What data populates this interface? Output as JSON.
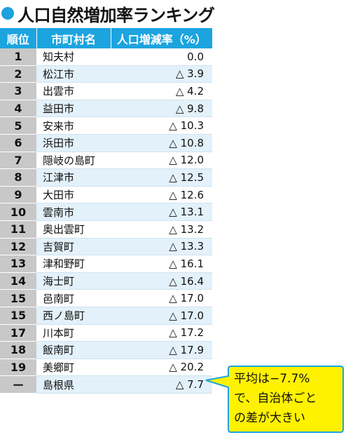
{
  "title": "人口自然増加率ランキング",
  "table": {
    "headers": [
      "順位",
      "市町村名",
      "人口増減率（%）"
    ],
    "rows": [
      {
        "rank": "1",
        "name": "知夫村",
        "value": "0.0"
      },
      {
        "rank": "2",
        "name": "松江市",
        "value": "△ 3.9"
      },
      {
        "rank": "3",
        "name": "出雲市",
        "value": "△ 4.2"
      },
      {
        "rank": "4",
        "name": "益田市",
        "value": "△ 9.8"
      },
      {
        "rank": "5",
        "name": "安来市",
        "value": "△ 10.3"
      },
      {
        "rank": "6",
        "name": "浜田市",
        "value": "△ 10.8"
      },
      {
        "rank": "7",
        "name": "隠岐の島町",
        "value": "△ 12.0"
      },
      {
        "rank": "8",
        "name": "江津市",
        "value": "△ 12.5"
      },
      {
        "rank": "9",
        "name": "大田市",
        "value": "△ 12.6"
      },
      {
        "rank": "10",
        "name": "雲南市",
        "value": "△ 13.1"
      },
      {
        "rank": "11",
        "name": "奥出雲町",
        "value": "△ 13.2"
      },
      {
        "rank": "12",
        "name": "吉賀町",
        "value": "△ 13.3"
      },
      {
        "rank": "13",
        "name": "津和野町",
        "value": "△ 16.1"
      },
      {
        "rank": "14",
        "name": "海士町",
        "value": "△ 16.4"
      },
      {
        "rank": "15",
        "name": "邑南町",
        "value": "△ 17.0"
      },
      {
        "rank": "15",
        "name": "西ノ島町",
        "value": "△ 17.0"
      },
      {
        "rank": "17",
        "name": "川本町",
        "value": "△ 17.2"
      },
      {
        "rank": "18",
        "name": "飯南町",
        "value": "△ 17.9"
      },
      {
        "rank": "19",
        "name": "美郷町",
        "value": "△ 20.2"
      },
      {
        "rank": "ー",
        "name": "島根県",
        "value": "△ 7.7"
      }
    ]
  },
  "callout": {
    "lines": [
      "平均は−7.7%",
      "で、自治体ごと",
      "の差が大きい"
    ],
    "fill_color": "#fff200",
    "border_color": "#1ca4df"
  },
  "colors": {
    "header_bg": "#1ca4df",
    "rank_bg": "#c8c8c8",
    "stripe_bg": "#e3f1fa",
    "title_dot": "#1da1df"
  }
}
